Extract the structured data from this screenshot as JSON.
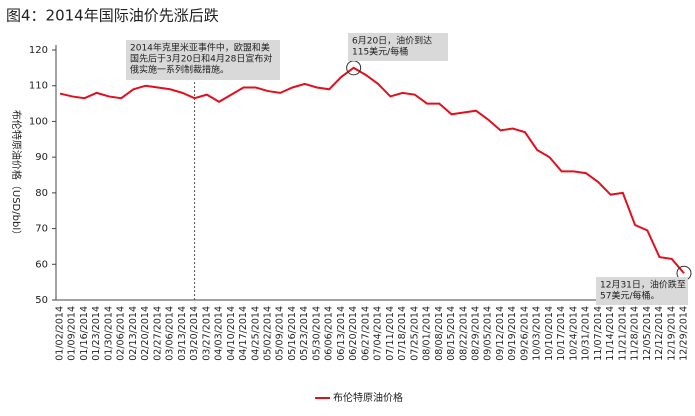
{
  "chart_data": {
    "type": "line",
    "title": "图4：2014年国际油价先涨后跌",
    "y_label": "布伦特原油价格（USD/bbl）",
    "categories": [
      "01/02/2014",
      "01/09/2014",
      "01/16/2014",
      "01/23/2014",
      "01/30/2014",
      "02/06/2014",
      "02/13/2014",
      "02/20/2014",
      "02/27/2014",
      "03/06/2014",
      "03/13/2014",
      "03/20/2014",
      "03/27/2014",
      "04/03/2014",
      "04/10/2014",
      "04/17/2014",
      "04/25/2014",
      "05/02/2014",
      "05/09/2014",
      "05/16/2014",
      "05/23/2014",
      "05/30/2014",
      "06/06/2014",
      "06/13/2014",
      "06/20/2014",
      "06/27/2014",
      "07/04/2014",
      "07/11/2014",
      "07/18/2014",
      "07/25/2014",
      "08/01/2014",
      "08/08/2014",
      "08/15/2014",
      "08/22/2014",
      "08/29/2014",
      "09/05/2014",
      "09/12/2014",
      "09/19/2014",
      "09/26/2014",
      "10/03/2014",
      "10/10/2014",
      "10/17/2014",
      "10/24/2014",
      "10/31/2014",
      "11/07/2014",
      "11/14/2014",
      "11/21/2014",
      "11/28/2014",
      "12/05/2014",
      "12/12/2014",
      "12/19/2014",
      "12/29/2014"
    ],
    "series": [
      {
        "name": "布伦特原油价格",
        "color": "#e0101e",
        "values": [
          107.8,
          107,
          106.5,
          108,
          107,
          106.5,
          109,
          110,
          109.5,
          109,
          108,
          106.5,
          107.5,
          105.5,
          107.5,
          109.5,
          109.5,
          108.5,
          108,
          109.5,
          110.5,
          109.5,
          109,
          112.5,
          115,
          113,
          110.5,
          107,
          108,
          107.5,
          105,
          105,
          102,
          102.5,
          103,
          100.5,
          97.5,
          98,
          97,
          92,
          90,
          86,
          86,
          85.5,
          83,
          79.5,
          80,
          71,
          69.5,
          62,
          61.5,
          57.5
        ]
      }
    ],
    "ylim": [
      50,
      120
    ],
    "yticks": [
      50,
      60,
      70,
      80,
      90,
      100,
      110,
      120
    ],
    "annotations": [
      {
        "lines": [
          "2014年克里米亚事件中，欧盟和美",
          "国先后于3月20日和4月28日宣布对",
          "俄实施一系列制裁措施。"
        ]
      },
      {
        "lines": [
          "6月20日，油价到达",
          "115美元/每桶"
        ]
      },
      {
        "lines": [
          "12月31日，油价跌至",
          "57美元/每桶。"
        ]
      }
    ]
  }
}
